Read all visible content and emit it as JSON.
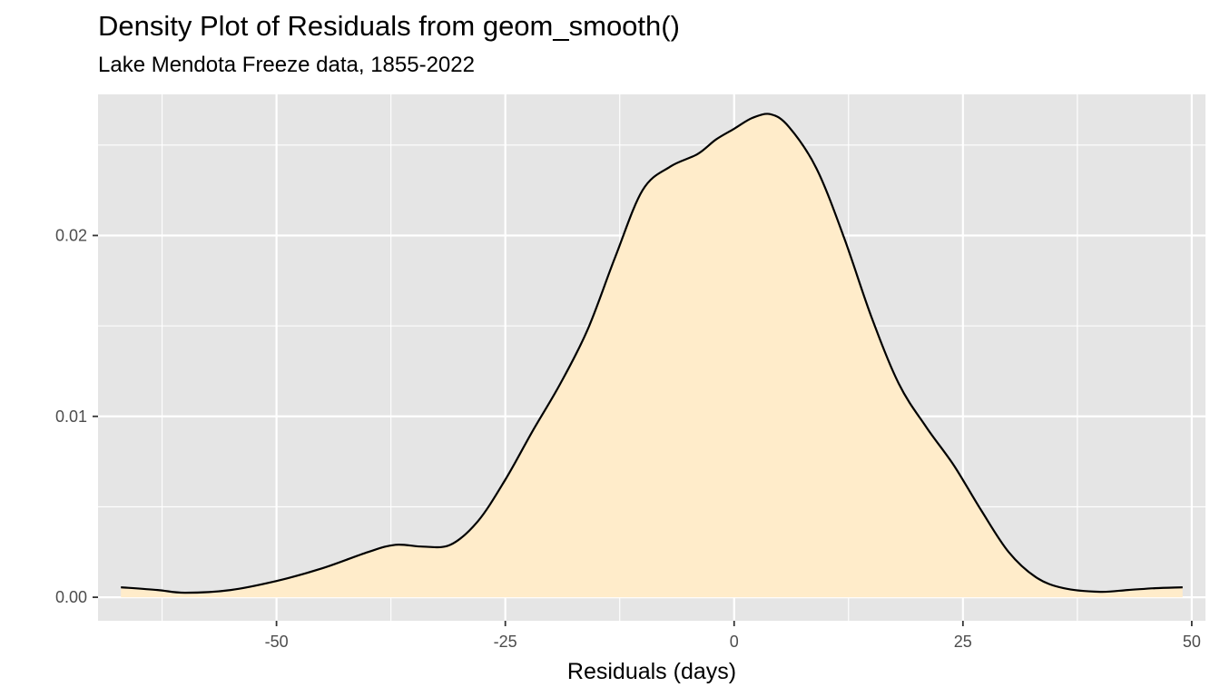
{
  "chart_data": {
    "type": "area",
    "title": "Density Plot of Residuals from geom_smooth()",
    "subtitle": "Lake Mendota Freeze data, 1855-2022",
    "xlabel": "Residuals (days)",
    "ylabel": "",
    "xlim": [
      -69.5,
      51.5
    ],
    "ylim": [
      -0.0013,
      0.0278
    ],
    "x_ticks": [
      -50,
      -25,
      0,
      25,
      50
    ],
    "x_tick_labels": [
      "-50",
      "-25",
      "0",
      "25",
      "50"
    ],
    "y_ticks": [
      0.0,
      0.01,
      0.02
    ],
    "y_tick_labels": [
      "0.00",
      "0.01",
      "0.02"
    ],
    "grid": true,
    "legend": "none",
    "colors": {
      "panel": "#e5e5e5",
      "grid": "#ffffff",
      "fill": "#ffecca",
      "line": "#000000",
      "tick_text": "#4d4d4d"
    },
    "series": [
      {
        "x": [
          -67,
          -63,
          -60,
          -55,
          -50,
          -45,
          -40,
          -37,
          -34,
          -31,
          -28,
          -25,
          -22,
          -19,
          -16,
          -13,
          -10,
          -7,
          -4,
          -2,
          0,
          2,
          4,
          6,
          9,
          12,
          15,
          18,
          21,
          24,
          27,
          30,
          33,
          36,
          40,
          43,
          46,
          49
        ],
        "y": [
          0.00055,
          0.0004,
          0.00025,
          0.0004,
          0.0009,
          0.0016,
          0.0025,
          0.0029,
          0.0028,
          0.0029,
          0.0042,
          0.0065,
          0.0092,
          0.0118,
          0.0148,
          0.0188,
          0.0225,
          0.0238,
          0.0245,
          0.0253,
          0.0259,
          0.0265,
          0.0267,
          0.026,
          0.0237,
          0.0199,
          0.0155,
          0.0118,
          0.0094,
          0.0073,
          0.0048,
          0.0025,
          0.0011,
          0.0005,
          0.0003,
          0.0004,
          0.0005,
          0.00055
        ]
      }
    ]
  }
}
